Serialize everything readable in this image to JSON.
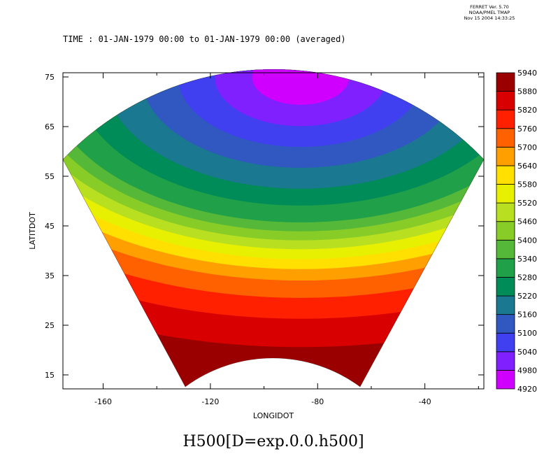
{
  "stamp": {
    "line1": "FERRET Ver. 5.70",
    "line2": "NOAA/PMEL TMAP",
    "line3": "Nov 15 2004 14:33:25"
  },
  "chart_data": {
    "type": "heatmap",
    "title": "TIME : 01-JAN-1979 00:00 to 01-JAN-1979 00:00 (averaged)",
    "variable_label": "H500[D=exp.0.0.h500]",
    "xlabel": "LONGIDOT",
    "ylabel": "LATITDOT",
    "xlim": [
      -175,
      -18
    ],
    "ylim": [
      12,
      76
    ],
    "xticks": [
      -160,
      -120,
      -80,
      -40
    ],
    "yticks": [
      75,
      65,
      55,
      45,
      35,
      25,
      15
    ],
    "xtick_labels": [
      "-160",
      "-120",
      "-80",
      "-40"
    ],
    "ytick_labels": [
      "75",
      "65",
      "55",
      "45",
      "35",
      "25",
      "15"
    ],
    "colorbar": {
      "levels": [
        4920,
        4980,
        5040,
        5100,
        5160,
        5220,
        5280,
        5340,
        5400,
        5460,
        5520,
        5580,
        5640,
        5700,
        5760,
        5820,
        5880,
        5940
      ],
      "level_labels": [
        "4920",
        "4980",
        "5040",
        "5100",
        "5160",
        "5220",
        "5280",
        "5340",
        "5400",
        "5460",
        "5520",
        "5580",
        "5640",
        "5700",
        "5760",
        "5820",
        "5880",
        "5940"
      ],
      "colors": [
        "#d000ff",
        "#8020ff",
        "#4040f0",
        "#3058c0",
        "#1a7890",
        "#008c58",
        "#20a048",
        "#55b838",
        "#88cc28",
        "#b8e020",
        "#e6f000",
        "#ffe000",
        "#ffa000",
        "#ff6000",
        "#ff2000",
        "#d80000",
        "#9b0000"
      ]
    },
    "contour_lat_at_center_meridian": [
      69.4,
      65.1,
      60.9,
      56.7,
      52.5,
      49.1,
      45.7,
      43.9,
      42.1,
      40.3,
      38.3,
      36.3,
      34.0,
      30.5,
      26.3,
      20.6
    ]
  }
}
